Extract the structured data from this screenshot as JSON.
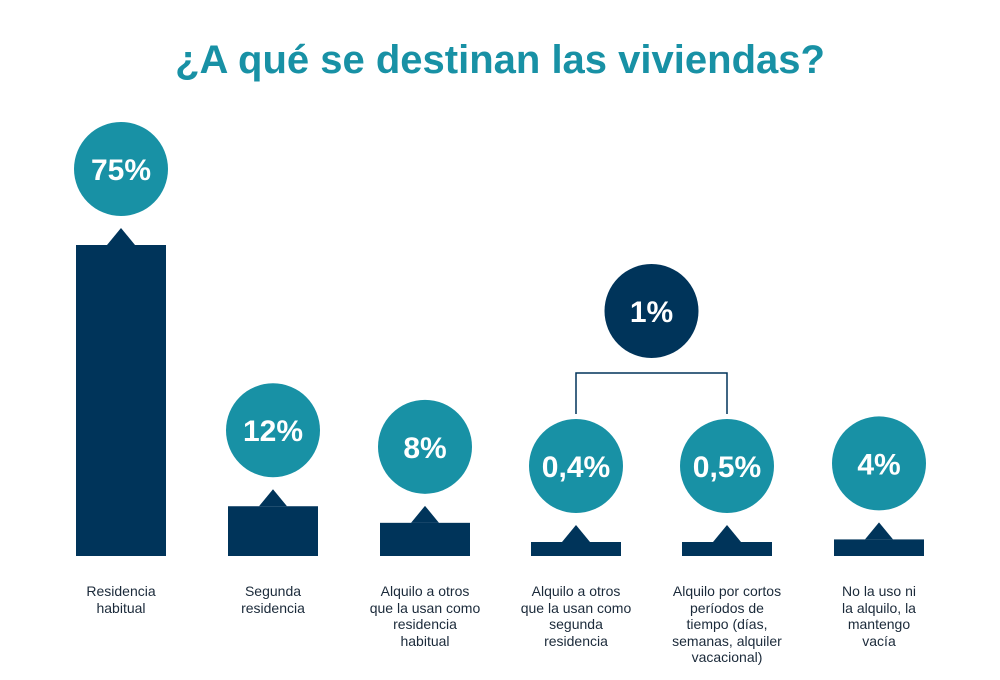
{
  "chart_data": {
    "type": "bar",
    "title": "¿A qué se destinan las viviendas?",
    "categories": [
      "Residencia habitual",
      "Segunda residencia",
      "Alquilo a otros que la usan como residencia habitual",
      "Alquilo a otros que la usan como segunda residencia",
      "Alquilo por cortos períodos de tiempo (días, semanas, alquiler vacacional)",
      "No la uso ni la alquilo, la mantengo vacía"
    ],
    "values": [
      75,
      12,
      8,
      0.4,
      0.5,
      4
    ],
    "value_labels": [
      "75%",
      "12%",
      "8%",
      "0,4%",
      "0,5%",
      "4%"
    ],
    "group": {
      "label": "1%",
      "value": 1,
      "members": [
        3,
        4
      ]
    },
    "xlabel": "",
    "ylabel": "",
    "ylim": [
      0,
      80
    ],
    "grid": false,
    "legend": "none"
  },
  "colors": {
    "bar": "#00345a",
    "bubble": "#1891a5",
    "group_bubble": "#00345a",
    "title": "#1891a5",
    "connector": "#00345a"
  }
}
